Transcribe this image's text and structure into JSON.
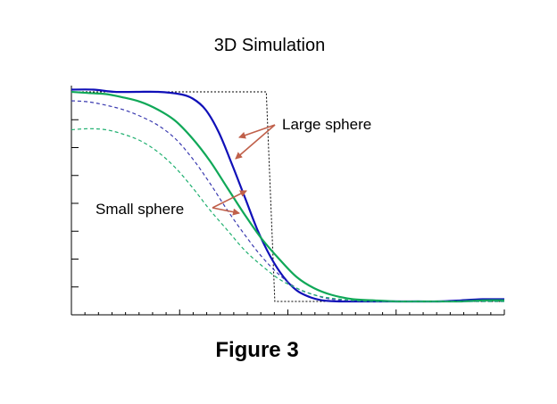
{
  "title": "3D Simulation",
  "caption": "Figure 3",
  "colors": {
    "large_solid_blue": "#1010b8",
    "large_solid_green": "#10a858",
    "small_dashed_blue": "#3a3ab0",
    "small_dashed_green": "#20b070",
    "step": "#000000",
    "arrows": "#c0604a"
  },
  "chart_data": {
    "type": "line",
    "title": "3D Simulation",
    "xlabel": "",
    "ylabel": "",
    "xlim": [
      0,
      1
    ],
    "ylim": [
      0,
      1
    ],
    "grid": false,
    "legend": "none",
    "x_ticks_major": 4,
    "x_ticks_minor_per_major": 8,
    "y_ticks": 8,
    "annotations": [
      {
        "text": "Large sphere",
        "points_to": [
          "large_solid_blue",
          "large_solid_green"
        ]
      },
      {
        "text": "Small sphere",
        "points_to": [
          "small_dashed_blue",
          "small_dashed_green"
        ]
      }
    ],
    "series": [
      {
        "key": "step",
        "style": "dotted",
        "color": "#000000",
        "x": [
          0.0,
          0.45,
          0.47,
          1.0
        ],
        "y": [
          1.0,
          1.0,
          0.06,
          0.06
        ]
      },
      {
        "key": "large_solid_blue",
        "style": "solid",
        "color": "#1010b8",
        "x": [
          0.0,
          0.05,
          0.1,
          0.15,
          0.2,
          0.25,
          0.28,
          0.31,
          0.34,
          0.37,
          0.4,
          0.43,
          0.46,
          0.49,
          0.52,
          0.55,
          0.58,
          0.62,
          0.66,
          0.7,
          0.75,
          0.8,
          0.85,
          0.9,
          0.95,
          1.0
        ],
        "y": [
          1.01,
          1.01,
          1.0,
          1.0,
          1.0,
          0.99,
          0.97,
          0.92,
          0.82,
          0.68,
          0.53,
          0.38,
          0.26,
          0.17,
          0.11,
          0.08,
          0.065,
          0.06,
          0.06,
          0.06,
          0.06,
          0.06,
          0.06,
          0.065,
          0.07,
          0.07
        ]
      },
      {
        "key": "large_solid_green",
        "style": "solid",
        "color": "#10a858",
        "x": [
          0.0,
          0.04,
          0.08,
          0.12,
          0.16,
          0.2,
          0.24,
          0.28,
          0.32,
          0.36,
          0.4,
          0.44,
          0.48,
          0.52,
          0.56,
          0.6,
          0.65,
          0.7,
          0.75,
          0.8,
          0.85,
          0.9,
          0.95,
          1.0
        ],
        "y": [
          1.0,
          0.995,
          0.99,
          0.975,
          0.955,
          0.92,
          0.87,
          0.79,
          0.69,
          0.57,
          0.45,
          0.34,
          0.25,
          0.17,
          0.12,
          0.09,
          0.07,
          0.065,
          0.06,
          0.06,
          0.06,
          0.06,
          0.065,
          0.065
        ]
      },
      {
        "key": "small_dashed_blue",
        "style": "dashed",
        "color": "#3a3ab0",
        "x": [
          0.0,
          0.04,
          0.08,
          0.12,
          0.16,
          0.2,
          0.24,
          0.28,
          0.32,
          0.36,
          0.4,
          0.44,
          0.48,
          0.52,
          0.56,
          0.6,
          0.65,
          0.7,
          0.75,
          0.8,
          0.85,
          0.9,
          1.0
        ],
        "y": [
          0.96,
          0.955,
          0.94,
          0.92,
          0.89,
          0.85,
          0.79,
          0.7,
          0.59,
          0.47,
          0.36,
          0.26,
          0.18,
          0.12,
          0.09,
          0.07,
          0.063,
          0.06,
          0.06,
          0.06,
          0.06,
          0.06,
          0.06
        ]
      },
      {
        "key": "small_dashed_green",
        "style": "dashed",
        "color": "#20b070",
        "x": [
          0.0,
          0.04,
          0.08,
          0.12,
          0.16,
          0.2,
          0.24,
          0.28,
          0.32,
          0.36,
          0.4,
          0.44,
          0.48,
          0.52,
          0.56,
          0.6,
          0.65,
          0.7,
          0.75,
          0.8,
          0.9,
          1.0
        ],
        "y": [
          0.83,
          0.835,
          0.83,
          0.81,
          0.78,
          0.73,
          0.66,
          0.57,
          0.47,
          0.38,
          0.29,
          0.22,
          0.16,
          0.12,
          0.09,
          0.075,
          0.065,
          0.06,
          0.06,
          0.06,
          0.06,
          0.06
        ]
      }
    ]
  }
}
